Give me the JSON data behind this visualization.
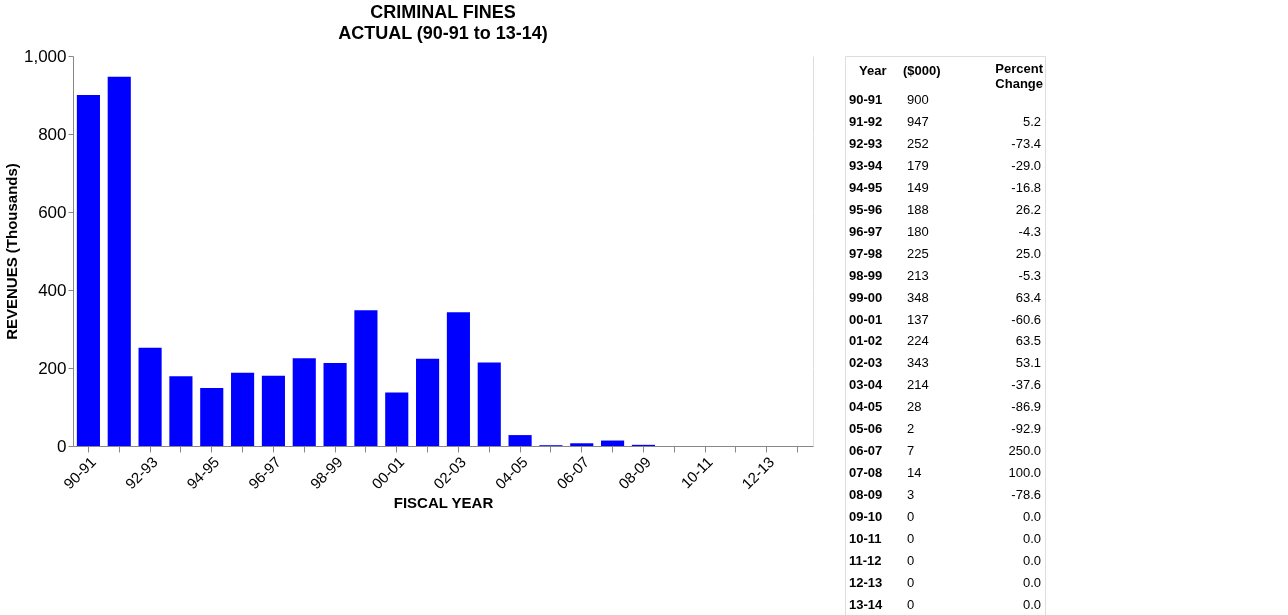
{
  "chart_data": [
    {
      "type": "bar",
      "title": "CRIMINAL FINES",
      "subtitle": "ACTUAL (90-91 to 13-14)",
      "xlabel": "FISCAL YEAR",
      "ylabel": "REVENUES (Thousands)",
      "categories": [
        "90-91",
        null,
        "92-93",
        null,
        "94-95",
        null,
        "96-97",
        null,
        "98-99",
        null,
        "00-01",
        null,
        "02-03",
        null,
        "04-05",
        null,
        "06-07",
        null,
        "08-09",
        null,
        "10-11",
        null,
        "12-13",
        null
      ],
      "values": [
        900,
        947,
        252,
        179,
        149,
        188,
        180,
        225,
        213,
        348,
        137,
        224,
        343,
        214,
        28,
        2,
        7,
        14,
        3,
        0,
        0,
        0,
        0,
        0
      ],
      "color": "#0000ff",
      "ylim": [
        0,
        1000
      ],
      "yticks": [
        0,
        200,
        400,
        600,
        800,
        {
          "value": 1000,
          "label": "1,000"
        }
      ],
      "grid": "y"
    },
    {
      "type": "other",
      "xlabel": "Year",
      "data_labels": true,
      "categories": [
        "90-91",
        "91-92",
        "92-93",
        "93-94",
        "94-95",
        "95-96",
        "96-97",
        "97-98",
        "98-99",
        "99-00",
        "00-01",
        "01-02",
        "02-03",
        "03-04",
        "04-05",
        "05-06",
        "06-07",
        "07-08",
        "08-09",
        "09-10",
        "10-11",
        "11-12",
        "12-13",
        "13-14"
      ],
      "series": [
        {
          "name": "($000)",
          "values": [
            900,
            947,
            252,
            179,
            149,
            188,
            180,
            225,
            213,
            348,
            137,
            224,
            343,
            214,
            28,
            2,
            7,
            14,
            3,
            0,
            0,
            0,
            0,
            0
          ]
        },
        {
          "name": "Percent Change",
          "values": [
            null,
            5.2,
            -73.4,
            -29.0,
            -16.8,
            26.2,
            -4.3,
            25.0,
            -5.3,
            63.4,
            -60.6,
            63.5,
            53.1,
            -37.6,
            -86.9,
            -92.9,
            250.0,
            100.0,
            -78.6,
            0.0,
            0.0,
            0.0,
            0.0,
            0.0
          ],
          "value_labels": [
            null,
            "5.2",
            "-73.4",
            "-29.0",
            "-16.8",
            "26.2",
            "-4.3",
            "25.0",
            "-5.3",
            "63.4",
            "-60.6",
            "63.5",
            "53.1",
            "-37.6",
            "-86.9",
            "-92.9",
            "250.0",
            "100.0",
            "-78.6",
            "0.0",
            "0.0",
            "0.0",
            "0.0",
            "0.0"
          ]
        }
      ]
    }
  ]
}
